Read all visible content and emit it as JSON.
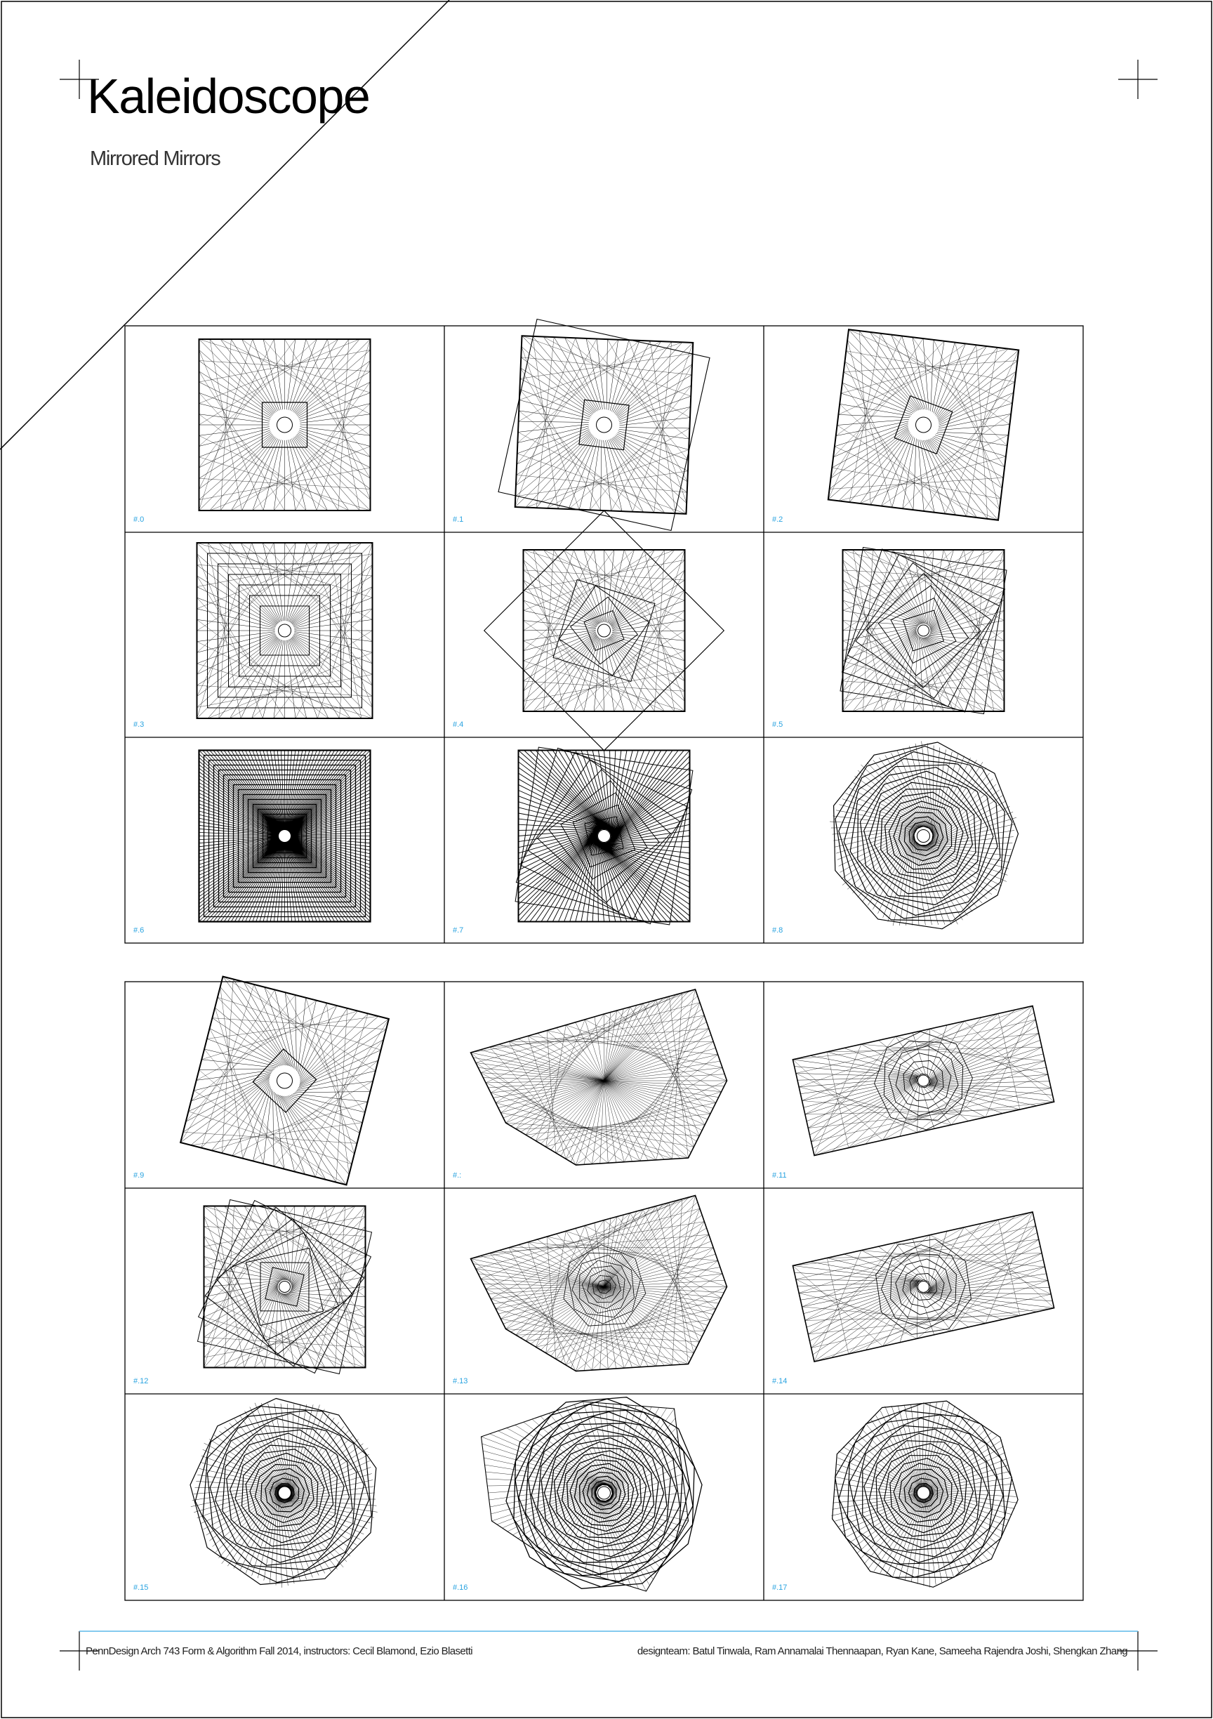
{
  "header": {
    "title": "Kaleidoscope",
    "subtitle": "Mirrored Mirrors"
  },
  "panels": [
    {
      "label": "#.0",
      "form": "square-radial",
      "turn": 0
    },
    {
      "label": "#.1",
      "form": "square-tilted-frame",
      "turn": 0.04
    },
    {
      "label": "#.2",
      "form": "square-twist",
      "turn": 0.12
    },
    {
      "label": "#.3",
      "form": "nested-squares",
      "turn": 0
    },
    {
      "label": "#.4",
      "form": "diamond-frame",
      "turn": 0
    },
    {
      "label": "#.5",
      "form": "pinwheel",
      "turn": 0.35
    },
    {
      "label": "#.6",
      "form": "dense-tunnel",
      "turn": 0
    },
    {
      "label": "#.7",
      "form": "swirl",
      "turn": 0.6
    },
    {
      "label": "#.8",
      "form": "polygon-spiral",
      "turn": 1.2
    },
    {
      "label": "#.9",
      "form": "square-twist",
      "turn": 0.25
    },
    {
      "label": "#.:",
      "form": "shard",
      "turn": 0.2
    },
    {
      "label": "#.11",
      "form": "tilted-rect",
      "turn": 0.5
    },
    {
      "label": "#.12",
      "form": "pinwheel",
      "turn": 0.5
    },
    {
      "label": "#.13",
      "form": "shard-spiral",
      "turn": 0.4
    },
    {
      "label": "#.14",
      "form": "tilted-rect",
      "turn": 0.8
    },
    {
      "label": "#.15",
      "form": "polygon-spiral",
      "turn": 1.6
    },
    {
      "label": "#.16",
      "form": "shell",
      "turn": 2.0
    },
    {
      "label": "#.17",
      "form": "polygon-spiral",
      "turn": 2.2
    }
  ],
  "footer": {
    "course": "PennDesign Arch 743 Form & Algorithm Fall 2014, instructors: Cecil Blamond, Ezio Blasetti",
    "team": "designteam:  Batul Tinwala, Ram Annamalai Thennaapan, Ryan Kane, Sameeha Rajendra Joshi, Shengkan Zhang"
  },
  "colors": {
    "ink": "#000000",
    "label": "#29a3e0",
    "rule": "#5bb8e8",
    "border": "#000000"
  }
}
